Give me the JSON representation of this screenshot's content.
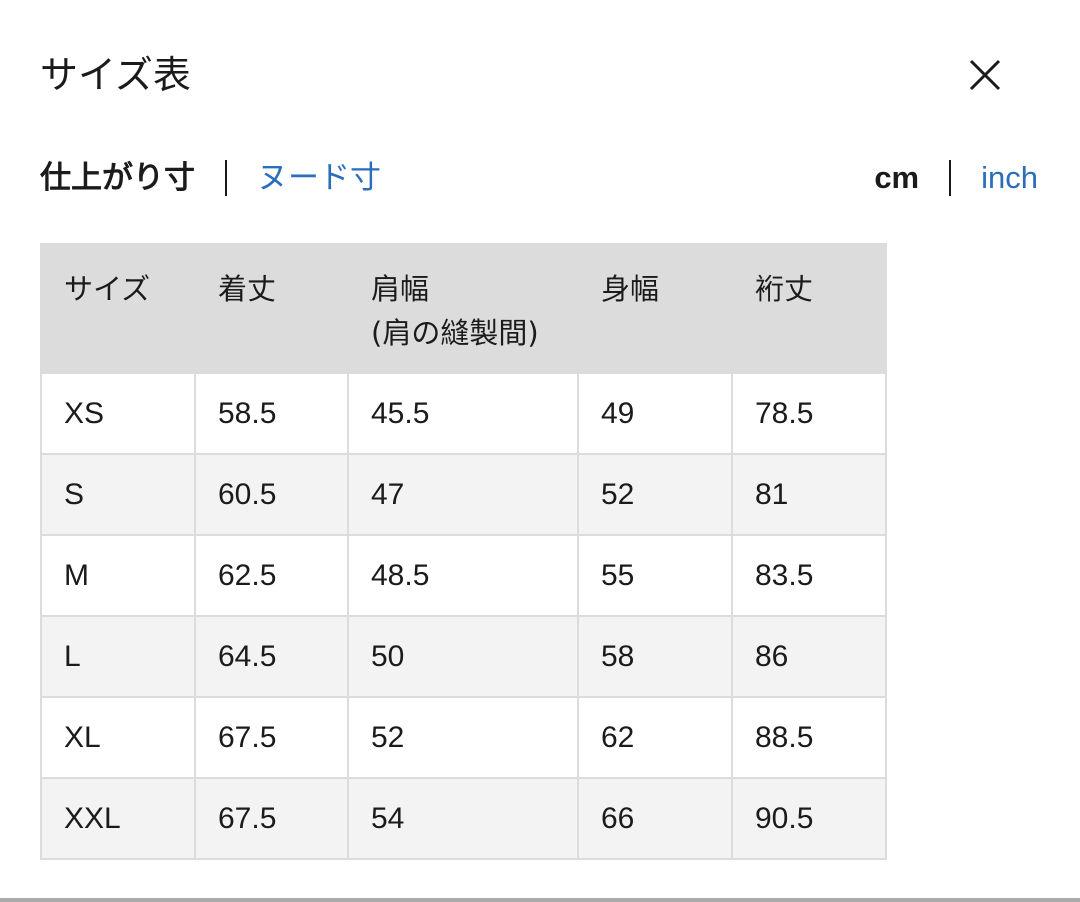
{
  "title": "サイズ表",
  "close_icon": "close-icon",
  "measure_toggle": {
    "active": "仕上がり寸",
    "other": "ヌード寸"
  },
  "unit_toggle": {
    "active": "cm",
    "other": "inch"
  },
  "colors": {
    "link": "#2a6ebb",
    "header_bg": "#dcdcdc",
    "alt_row_bg": "#f3f3f3"
  },
  "table": {
    "headers": [
      "サイズ",
      "着丈",
      "肩幅",
      "身幅",
      "裄丈"
    ],
    "header_sub": "(肩の縫製間)",
    "rows": [
      [
        "XS",
        "58.5",
        "45.5",
        "49",
        "78.5"
      ],
      [
        "S",
        "60.5",
        "47",
        "52",
        "81"
      ],
      [
        "M",
        "62.5",
        "48.5",
        "55",
        "83.5"
      ],
      [
        "L",
        "64.5",
        "50",
        "58",
        "86"
      ],
      [
        "XL",
        "67.5",
        "52",
        "62",
        "88.5"
      ],
      [
        "XXL",
        "67.5",
        "54",
        "66",
        "90.5"
      ]
    ]
  }
}
